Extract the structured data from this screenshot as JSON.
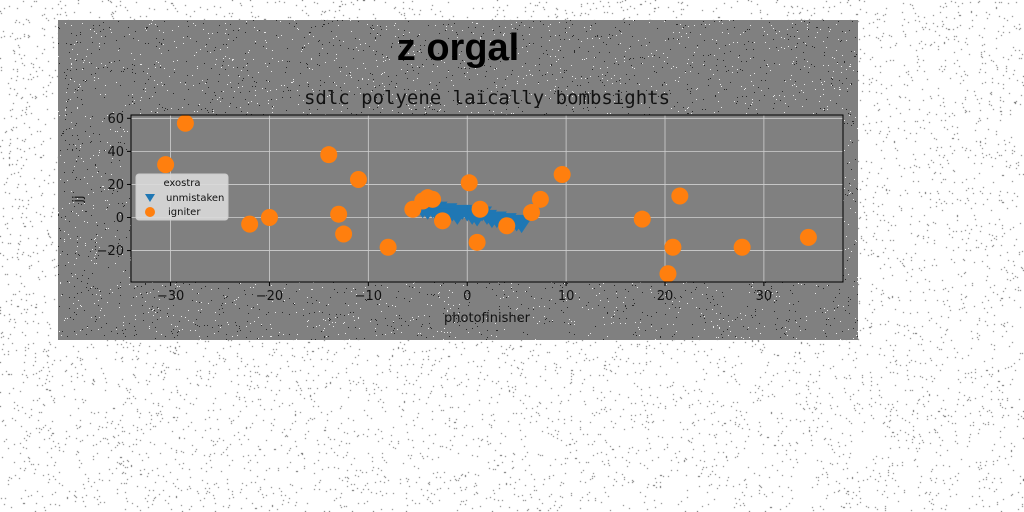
{
  "figure": {
    "title": "z orgal",
    "background_color": "#808080",
    "axes_facecolor": "#808080"
  },
  "chart_data": {
    "type": "scatter",
    "subtitle": "sdlc polyene laically bombsights",
    "xlabel": "photofinisher",
    "ylabel": "jj",
    "xlim": [
      -34,
      38
    ],
    "ylim": [
      -39,
      62
    ],
    "xticks": [
      -30,
      -20,
      -10,
      0,
      10,
      20,
      30
    ],
    "xtick_labels": [
      "−30",
      "−20",
      "−10",
      "0",
      "10",
      "20",
      "30"
    ],
    "yticks": [
      -20,
      0,
      20,
      40,
      60
    ],
    "ytick_labels": [
      "−20",
      "0",
      "20",
      "40",
      "60"
    ],
    "grid": true,
    "legend": {
      "title": "exostra",
      "placement": "center-left"
    },
    "series": [
      {
        "name": "unmistaken",
        "marker": "triangle-down",
        "color": "#1f77b4",
        "x": [
          -4.5,
          -4,
          -3.5,
          -3,
          -2.5,
          -2,
          -1.5,
          -1,
          -0.5,
          0,
          0.5,
          1,
          1.5,
          2,
          2.5,
          3,
          3.5,
          4,
          4.5,
          5,
          5.5,
          -3,
          -1,
          1,
          3,
          5
        ],
        "y": [
          5,
          4,
          5,
          6,
          4,
          5,
          3,
          2,
          4,
          3,
          1,
          2,
          3,
          1,
          -1,
          0,
          -2,
          -1,
          -3,
          -2,
          -4,
          2,
          1,
          0,
          -1,
          -3
        ]
      },
      {
        "name": "igniter",
        "marker": "circle",
        "color": "#ff7f0e",
        "x": [
          -30.5,
          -28.5,
          -22,
          -20,
          -14,
          -13,
          -12.5,
          -11,
          -8,
          -5.5,
          -4.5,
          -4,
          -3.5,
          -2.5,
          0.2,
          1,
          1.3,
          4,
          6.5,
          7.4,
          9.6,
          17.7,
          20.3,
          20.8,
          21.5,
          27.8,
          34.5
        ],
        "y": [
          32,
          57,
          -4,
          0,
          38,
          2,
          -10,
          23,
          -18,
          5,
          10,
          12,
          11,
          -2,
          21,
          -15,
          5,
          -5,
          3,
          11,
          26,
          -1,
          -34,
          -18,
          13,
          -18,
          -12
        ]
      }
    ]
  }
}
